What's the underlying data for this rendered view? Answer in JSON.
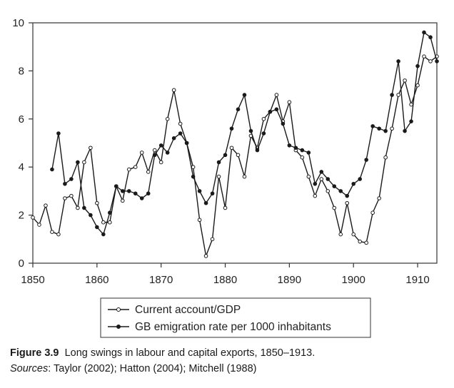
{
  "caption": {
    "figure_label": "Figure 3.9",
    "figure_title": "Long swings in labour and capital exports, 1850–1913.",
    "sources_label": "Sources",
    "sources_text": ": Taylor (2002); Hatton (2004); Mitchell (1988)"
  },
  "chart_data": {
    "type": "line",
    "title": "",
    "xlabel": "",
    "ylabel": "",
    "xlim": [
      1850,
      1913
    ],
    "ylim": [
      0,
      10
    ],
    "x_ticks": [
      1850,
      1860,
      1870,
      1880,
      1890,
      1900,
      1910
    ],
    "y_ticks": [
      0,
      2,
      4,
      6,
      8,
      10
    ],
    "grid": false,
    "legend_position": "bottom-center, below plot",
    "series": [
      {
        "name": "Current account/GDP",
        "marker": "open-circle",
        "color": "#1a1a1a",
        "x": [
          1850,
          1851,
          1852,
          1853,
          1854,
          1855,
          1856,
          1857,
          1858,
          1859,
          1860,
          1861,
          1862,
          1863,
          1864,
          1865,
          1866,
          1867,
          1868,
          1869,
          1870,
          1871,
          1872,
          1873,
          1874,
          1875,
          1876,
          1877,
          1878,
          1879,
          1880,
          1881,
          1882,
          1883,
          1884,
          1885,
          1886,
          1887,
          1888,
          1889,
          1890,
          1891,
          1892,
          1893,
          1894,
          1895,
          1896,
          1897,
          1898,
          1899,
          1900,
          1901,
          1902,
          1903,
          1904,
          1905,
          1906,
          1907,
          1908,
          1909,
          1910,
          1911,
          1912,
          1913
        ],
        "values": [
          1.9,
          1.6,
          2.4,
          1.3,
          1.2,
          2.7,
          2.8,
          2.3,
          4.2,
          4.8,
          2.5,
          1.7,
          1.7,
          3.2,
          2.6,
          3.9,
          4.0,
          4.6,
          3.8,
          4.7,
          4.2,
          6.0,
          7.2,
          5.8,
          5.0,
          4.0,
          1.8,
          0.3,
          1.0,
          3.6,
          2.3,
          4.8,
          4.5,
          3.6,
          5.3,
          4.8,
          6.0,
          6.3,
          7.0,
          5.9,
          6.7,
          4.7,
          4.4,
          3.6,
          2.8,
          3.5,
          3.0,
          2.3,
          1.2,
          2.5,
          1.2,
          0.9,
          0.85,
          2.1,
          2.7,
          4.4,
          5.6,
          7.0,
          7.6,
          6.6,
          7.4,
          8.6,
          8.4,
          8.6
        ]
      },
      {
        "name": "GB emigration rate per 1000 inhabitants",
        "marker": "filled-circle",
        "color": "#1a1a1a",
        "x": [
          1853,
          1854,
          1855,
          1856,
          1857,
          1858,
          1859,
          1860,
          1861,
          1862,
          1863,
          1864,
          1865,
          1866,
          1867,
          1868,
          1869,
          1870,
          1871,
          1872,
          1873,
          1874,
          1875,
          1876,
          1877,
          1878,
          1879,
          1880,
          1881,
          1882,
          1883,
          1884,
          1885,
          1886,
          1887,
          1888,
          1889,
          1890,
          1891,
          1892,
          1893,
          1894,
          1895,
          1896,
          1897,
          1898,
          1899,
          1900,
          1901,
          1902,
          1903,
          1904,
          1905,
          1906,
          1907,
          1908,
          1909,
          1910,
          1911,
          1912,
          1913
        ],
        "values": [
          3.9,
          5.4,
          3.3,
          3.5,
          4.2,
          2.3,
          2.0,
          1.5,
          1.2,
          2.1,
          3.2,
          3.0,
          3.0,
          2.9,
          2.7,
          2.9,
          4.5,
          4.9,
          4.6,
          5.2,
          5.4,
          5.0,
          3.6,
          3.0,
          2.5,
          2.9,
          4.2,
          4.5,
          5.6,
          6.4,
          7.0,
          5.5,
          4.7,
          5.4,
          6.3,
          6.4,
          5.8,
          4.9,
          4.8,
          4.7,
          4.6,
          3.3,
          3.8,
          3.5,
          3.2,
          3.0,
          2.8,
          3.3,
          3.5,
          4.3,
          5.7,
          5.6,
          5.5,
          7.0,
          8.4,
          5.5,
          5.9,
          8.2,
          9.6,
          9.4,
          8.4
        ]
      }
    ]
  }
}
